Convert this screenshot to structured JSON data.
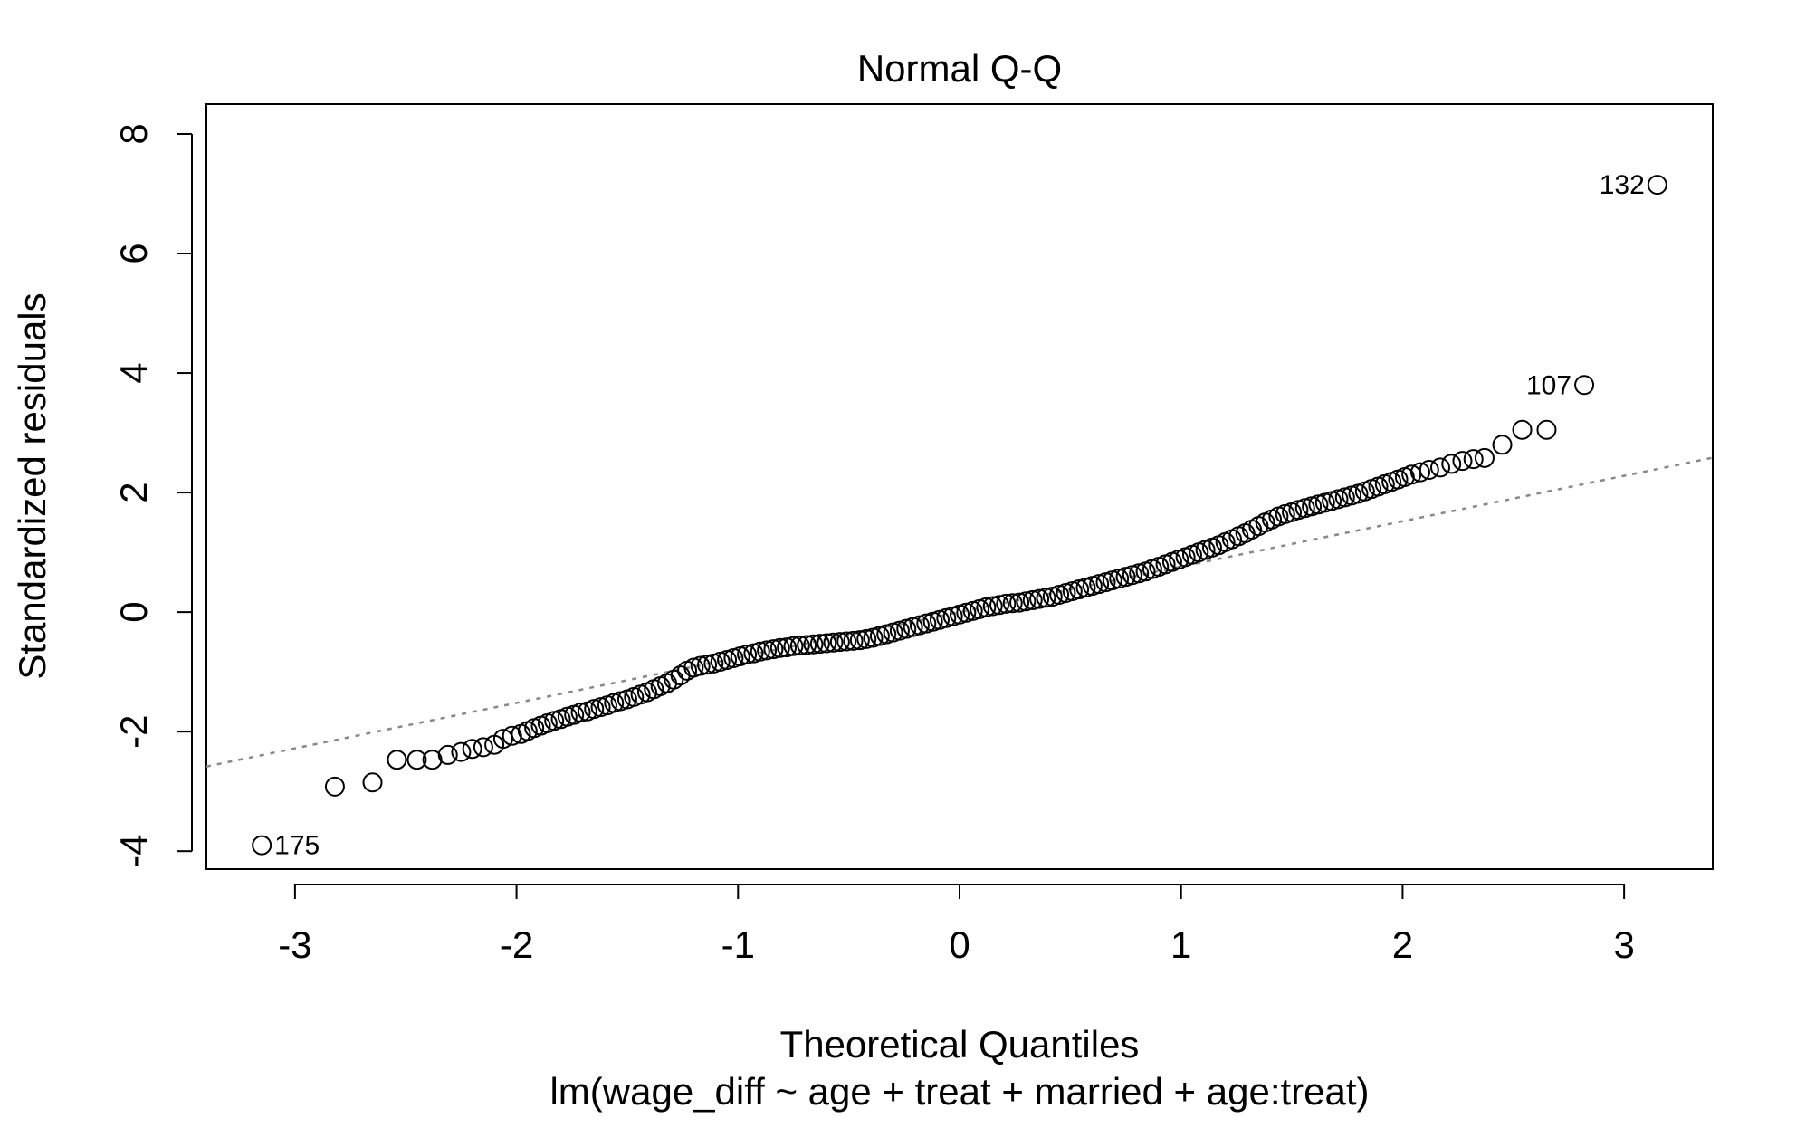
{
  "chart_data": {
    "type": "scatter",
    "title": "Normal Q-Q",
    "xlabel": "Theoretical Quantiles",
    "ylabel": "Standardized residuals",
    "subtitle": "lm(wage_diff ~ age + treat + married + age:treat)",
    "xlim": [
      -3.4,
      3.4
    ],
    "ylim": [
      -4.3,
      8.5
    ],
    "xticks": [
      -3,
      -2,
      -1,
      0,
      1,
      2,
      3
    ],
    "xtick_labels": [
      "-3",
      "-2",
      "-1",
      "0",
      "1",
      "2",
      "3"
    ],
    "yticks": [
      -4,
      -2,
      0,
      2,
      4,
      6,
      8
    ],
    "ytick_labels": [
      "-4",
      "-2",
      "0",
      "2",
      "4",
      "6",
      "8"
    ],
    "grid": false,
    "reference_line": {
      "intercept": 0,
      "slope": 0.76,
      "style": "dotted",
      "color": "#888888"
    },
    "point_style": {
      "marker": "open-circle",
      "color": "#000000"
    },
    "labeled_points": [
      {
        "label": "132",
        "x": 3.15,
        "y": 7.15
      },
      {
        "label": "107",
        "x": 2.82,
        "y": 3.8
      },
      {
        "label": "175",
        "x": -3.15,
        "y": -3.9
      }
    ],
    "points": [
      [
        -3.15,
        -3.9
      ],
      [
        -2.82,
        -2.92
      ],
      [
        -2.65,
        -2.85
      ],
      [
        -2.54,
        -2.47
      ],
      [
        -2.45,
        -2.47
      ],
      [
        -2.38,
        -2.47
      ],
      [
        -2.31,
        -2.39
      ],
      [
        -2.25,
        -2.34
      ],
      [
        -2.2,
        -2.29
      ],
      [
        -2.15,
        -2.26
      ],
      [
        -2.1,
        -2.22
      ],
      [
        -2.06,
        -2.12
      ],
      [
        -2.02,
        -2.07
      ],
      [
        -1.98,
        -2.04
      ],
      [
        -1.95,
        -1.99
      ],
      [
        -1.92,
        -1.94
      ],
      [
        -1.89,
        -1.9
      ],
      [
        -1.86,
        -1.86
      ],
      [
        -1.83,
        -1.82
      ],
      [
        -1.8,
        -1.79
      ],
      [
        -1.77,
        -1.75
      ],
      [
        -1.74,
        -1.72
      ],
      [
        -1.71,
        -1.68
      ],
      [
        -1.68,
        -1.66
      ],
      [
        -1.65,
        -1.62
      ],
      [
        -1.62,
        -1.59
      ],
      [
        -1.59,
        -1.56
      ],
      [
        -1.56,
        -1.52
      ],
      [
        -1.53,
        -1.49
      ],
      [
        -1.5,
        -1.46
      ],
      [
        -1.47,
        -1.42
      ],
      [
        -1.44,
        -1.38
      ],
      [
        -1.41,
        -1.34
      ],
      [
        -1.38,
        -1.29
      ],
      [
        -1.35,
        -1.24
      ],
      [
        -1.32,
        -1.19
      ],
      [
        -1.29,
        -1.13
      ],
      [
        -1.26,
        -1.06
      ],
      [
        -1.23,
        -0.98
      ],
      [
        -1.2,
        -0.93
      ],
      [
        -1.17,
        -0.9
      ],
      [
        -1.14,
        -0.88
      ],
      [
        -1.11,
        -0.86
      ],
      [
        -1.08,
        -0.83
      ],
      [
        -1.05,
        -0.8
      ],
      [
        -1.02,
        -0.77
      ],
      [
        -0.99,
        -0.74
      ],
      [
        -0.96,
        -0.71
      ],
      [
        -0.93,
        -0.69
      ],
      [
        -0.9,
        -0.66
      ],
      [
        -0.87,
        -0.64
      ],
      [
        -0.84,
        -0.62
      ],
      [
        -0.81,
        -0.6
      ],
      [
        -0.78,
        -0.59
      ],
      [
        -0.75,
        -0.57
      ],
      [
        -0.72,
        -0.56
      ],
      [
        -0.69,
        -0.55
      ],
      [
        -0.66,
        -0.54
      ],
      [
        -0.63,
        -0.53
      ],
      [
        -0.6,
        -0.52
      ],
      [
        -0.57,
        -0.51
      ],
      [
        -0.54,
        -0.5
      ],
      [
        -0.51,
        -0.49
      ],
      [
        -0.48,
        -0.48
      ],
      [
        -0.45,
        -0.47
      ],
      [
        -0.42,
        -0.45
      ],
      [
        -0.39,
        -0.43
      ],
      [
        -0.36,
        -0.4
      ],
      [
        -0.33,
        -0.37
      ],
      [
        -0.3,
        -0.34
      ],
      [
        -0.27,
        -0.31
      ],
      [
        -0.24,
        -0.28
      ],
      [
        -0.21,
        -0.25
      ],
      [
        -0.18,
        -0.22
      ],
      [
        -0.15,
        -0.19
      ],
      [
        -0.12,
        -0.16
      ],
      [
        -0.09,
        -0.13
      ],
      [
        -0.06,
        -0.1
      ],
      [
        -0.03,
        -0.07
      ],
      [
        0.0,
        -0.04
      ],
      [
        0.03,
        -0.01
      ],
      [
        0.06,
        0.02
      ],
      [
        0.09,
        0.05
      ],
      [
        0.12,
        0.08
      ],
      [
        0.15,
        0.1
      ],
      [
        0.18,
        0.12
      ],
      [
        0.21,
        0.14
      ],
      [
        0.24,
        0.15
      ],
      [
        0.27,
        0.16
      ],
      [
        0.3,
        0.18
      ],
      [
        0.33,
        0.2
      ],
      [
        0.36,
        0.22
      ],
      [
        0.39,
        0.24
      ],
      [
        0.42,
        0.26
      ],
      [
        0.45,
        0.29
      ],
      [
        0.48,
        0.32
      ],
      [
        0.51,
        0.35
      ],
      [
        0.54,
        0.38
      ],
      [
        0.57,
        0.41
      ],
      [
        0.6,
        0.44
      ],
      [
        0.63,
        0.47
      ],
      [
        0.66,
        0.5
      ],
      [
        0.69,
        0.53
      ],
      [
        0.72,
        0.56
      ],
      [
        0.75,
        0.59
      ],
      [
        0.78,
        0.62
      ],
      [
        0.81,
        0.65
      ],
      [
        0.84,
        0.68
      ],
      [
        0.87,
        0.72
      ],
      [
        0.9,
        0.76
      ],
      [
        0.93,
        0.8
      ],
      [
        0.96,
        0.84
      ],
      [
        0.99,
        0.88
      ],
      [
        1.02,
        0.92
      ],
      [
        1.05,
        0.96
      ],
      [
        1.08,
        1.0
      ],
      [
        1.11,
        1.04
      ],
      [
        1.14,
        1.08
      ],
      [
        1.17,
        1.12
      ],
      [
        1.2,
        1.17
      ],
      [
        1.23,
        1.22
      ],
      [
        1.26,
        1.27
      ],
      [
        1.29,
        1.32
      ],
      [
        1.32,
        1.38
      ],
      [
        1.35,
        1.44
      ],
      [
        1.38,
        1.5
      ],
      [
        1.41,
        1.55
      ],
      [
        1.44,
        1.6
      ],
      [
        1.47,
        1.64
      ],
      [
        1.5,
        1.67
      ],
      [
        1.53,
        1.71
      ],
      [
        1.56,
        1.74
      ],
      [
        1.59,
        1.77
      ],
      [
        1.62,
        1.8
      ],
      [
        1.65,
        1.83
      ],
      [
        1.68,
        1.86
      ],
      [
        1.71,
        1.89
      ],
      [
        1.74,
        1.92
      ],
      [
        1.77,
        1.95
      ],
      [
        1.8,
        1.98
      ],
      [
        1.83,
        2.02
      ],
      [
        1.86,
        2.06
      ],
      [
        1.89,
        2.1
      ],
      [
        1.92,
        2.14
      ],
      [
        1.95,
        2.18
      ],
      [
        1.98,
        2.22
      ],
      [
        2.01,
        2.26
      ],
      [
        2.04,
        2.3
      ],
      [
        2.08,
        2.34
      ],
      [
        2.12,
        2.38
      ],
      [
        2.17,
        2.42
      ],
      [
        2.22,
        2.48
      ],
      [
        2.27,
        2.53
      ],
      [
        2.32,
        2.56
      ],
      [
        2.37,
        2.58
      ],
      [
        2.45,
        2.8
      ],
      [
        2.54,
        3.05
      ],
      [
        2.65,
        3.05
      ],
      [
        2.82,
        3.8
      ],
      [
        3.15,
        7.15
      ]
    ]
  }
}
